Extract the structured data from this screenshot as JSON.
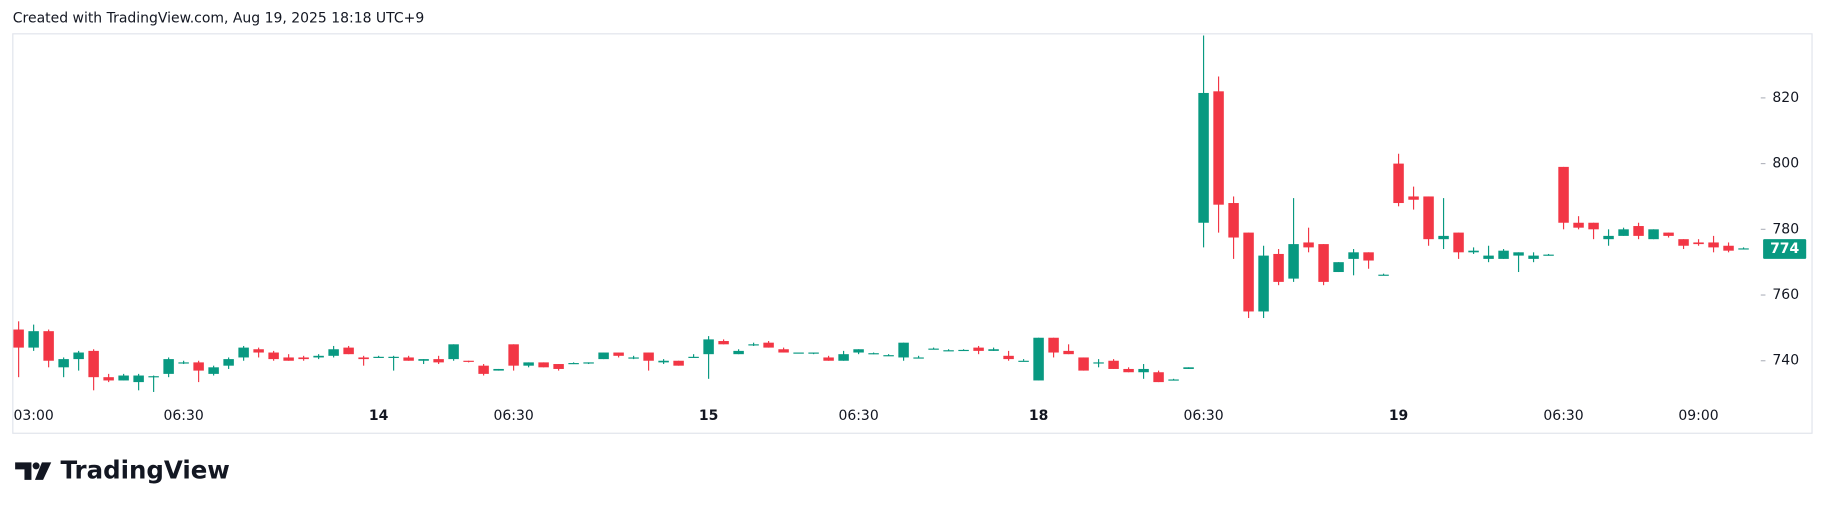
{
  "header": "Created with TradingView.com, Aug 19, 2025 18:18 UTC+9",
  "logo": "TradingView",
  "chart_data": {
    "type": "candlestick",
    "up_color": "#089981",
    "down_color": "#f23645",
    "ylim": [
      727.5,
      839.5
    ],
    "yticks": [
      740,
      760,
      780,
      800,
      820
    ],
    "last_price": 774,
    "categories": [
      null,
      "03:00",
      null,
      null,
      null,
      null,
      null,
      null,
      null,
      null,
      null,
      "06:30",
      null,
      null,
      null,
      null,
      null,
      null,
      null,
      null,
      null,
      null,
      null,
      null,
      "14",
      null,
      null,
      null,
      null,
      null,
      null,
      null,
      null,
      "06:30",
      null,
      null,
      null,
      null,
      null,
      null,
      null,
      null,
      null,
      null,
      null,
      null,
      "15",
      null,
      null,
      null,
      null,
      null,
      null,
      null,
      null,
      null,
      "06:30",
      null,
      null,
      null,
      null,
      null,
      null,
      null,
      null,
      null,
      null,
      null,
      "18",
      null,
      null,
      null,
      null,
      null,
      null,
      null,
      null,
      null,
      null,
      "06:30",
      null,
      null,
      null,
      null,
      null,
      null,
      null,
      null,
      null,
      null,
      null,
      null,
      "19",
      null,
      null,
      null,
      null,
      null,
      null,
      null,
      null,
      null,
      null,
      "06:30",
      null,
      null,
      null,
      null,
      null,
      null,
      null,
      null,
      "09:00",
      null,
      null,
      null
    ],
    "open": [
      749.5,
      744,
      749,
      738,
      740.5,
      743,
      735,
      734,
      733.5,
      735,
      736,
      739.5,
      739.5,
      736,
      738.5,
      741,
      743.5,
      742.5,
      741,
      741,
      741,
      741.5,
      744,
      741,
      741,
      741,
      741,
      740,
      740.5,
      740.5,
      740,
      738.5,
      737,
      745,
      738.5,
      739.5,
      739,
      739,
      739.3,
      740.5,
      742.5,
      741,
      742.5,
      739.5,
      740,
      741,
      742,
      746,
      742,
      745,
      745.5,
      743.5,
      742.5,
      742.5,
      741,
      740,
      742.5,
      742,
      741.5,
      741,
      741,
      743.5,
      743,
      743,
      744,
      743,
      741.5,
      740,
      734,
      747,
      743,
      741,
      739.5,
      740,
      737.5,
      736.5,
      736.5,
      734,
      737.5,
      782,
      822,
      788,
      779,
      755,
      772.5,
      765,
      776,
      775.5,
      767,
      771,
      773,
      766,
      800,
      790,
      790,
      777,
      779,
      773,
      771,
      771,
      772,
      771,
      772,
      799,
      782,
      782,
      777,
      778,
      781,
      777,
      779,
      777,
      776,
      776,
      775,
      774
    ],
    "high": [
      752,
      751,
      749.5,
      741,
      743,
      743.5,
      736,
      736,
      736,
      735.5,
      741,
      740,
      740,
      738.5,
      741,
      744.5,
      744,
      743,
      742,
      741.5,
      742,
      744.5,
      744.5,
      741.5,
      741.5,
      741.5,
      741.5,
      740.5,
      741.5,
      745,
      740,
      739,
      737.5,
      745,
      739.5,
      739.5,
      739,
      739.5,
      739.5,
      742.5,
      742.5,
      741.5,
      742.5,
      740.5,
      740,
      742,
      747.5,
      746.5,
      743.5,
      745.5,
      746,
      744,
      742.5,
      742.5,
      741.5,
      743,
      743.5,
      742.5,
      742,
      745.5,
      741.5,
      744,
      743.5,
      743.5,
      744.5,
      744,
      743,
      740.5,
      747,
      747,
      745,
      741,
      740.5,
      740.5,
      738,
      739,
      737,
      734.5,
      738,
      839,
      826.5,
      790,
      779,
      775,
      774,
      789.5,
      780.5,
      775.5,
      770,
      774,
      773,
      766.5,
      803,
      793,
      790,
      789.5,
      779,
      774.5,
      775,
      774,
      773,
      773,
      772.5,
      799,
      784,
      782,
      780,
      780.5,
      782,
      780,
      779,
      777,
      777,
      778,
      776,
      774.5
    ],
    "low": [
      735,
      743,
      738,
      735,
      737,
      731,
      733.5,
      734,
      731,
      730.5,
      735,
      739,
      733.5,
      735.5,
      737.5,
      740,
      741,
      740,
      740,
      740,
      740.5,
      741,
      742,
      738.5,
      741,
      737,
      740,
      739,
      739,
      740,
      739.5,
      735.5,
      737,
      737,
      738,
      738,
      737,
      739,
      739,
      740.5,
      741,
      740.5,
      737,
      739,
      738.5,
      741,
      734.5,
      745,
      742,
      744.5,
      744,
      742.5,
      742.5,
      742,
      740,
      740,
      742,
      742,
      741.5,
      740,
      741,
      743.5,
      743,
      743,
      742,
      743,
      740,
      740,
      734,
      741,
      742,
      737,
      738,
      737.5,
      736.5,
      734.5,
      733.5,
      734,
      737.5,
      774.5,
      779,
      771,
      753,
      753,
      763,
      764,
      773,
      763,
      767,
      766,
      768,
      766,
      787,
      786,
      775,
      774,
      771,
      772.5,
      770,
      771,
      767,
      770,
      772,
      780,
      780,
      777,
      775,
      778,
      777,
      777,
      777.5,
      774,
      775,
      773,
      773,
      774
    ],
    "close": [
      744,
      749,
      740,
      740.5,
      742.5,
      735,
      734,
      735.5,
      735.5,
      735.3,
      740.5,
      739.5,
      737,
      738,
      740.5,
      744,
      742.5,
      740.5,
      740,
      740.5,
      741.5,
      743.5,
      742,
      740.5,
      741.2,
      741.2,
      740,
      740.5,
      739.5,
      745,
      739.7,
      736,
      737.5,
      738.5,
      739.5,
      738,
      737.5,
      739.3,
      739.5,
      742.5,
      741.5,
      741,
      740,
      740,
      738.5,
      741.2,
      746.5,
      745,
      743,
      745,
      744,
      742.5,
      742.5,
      742.5,
      740,
      742,
      743.5,
      742.3,
      741.7,
      745.5,
      741,
      743.7,
      743.2,
      743.3,
      743,
      743.5,
      740.5,
      740,
      747,
      742.5,
      742,
      737,
      739.5,
      737.5,
      736.5,
      737.5,
      733.5,
      734.3,
      738,
      821.5,
      787.5,
      777.5,
      755,
      772,
      764,
      775.5,
      774.5,
      764,
      770,
      773,
      770.5,
      766.2,
      788,
      789,
      777,
      778,
      773,
      773.5,
      772,
      773.5,
      773,
      772,
      772.3,
      782,
      780.5,
      780,
      778,
      780,
      778,
      780,
      778,
      775,
      775.5,
      774.5,
      773.5,
      774.2
    ]
  }
}
